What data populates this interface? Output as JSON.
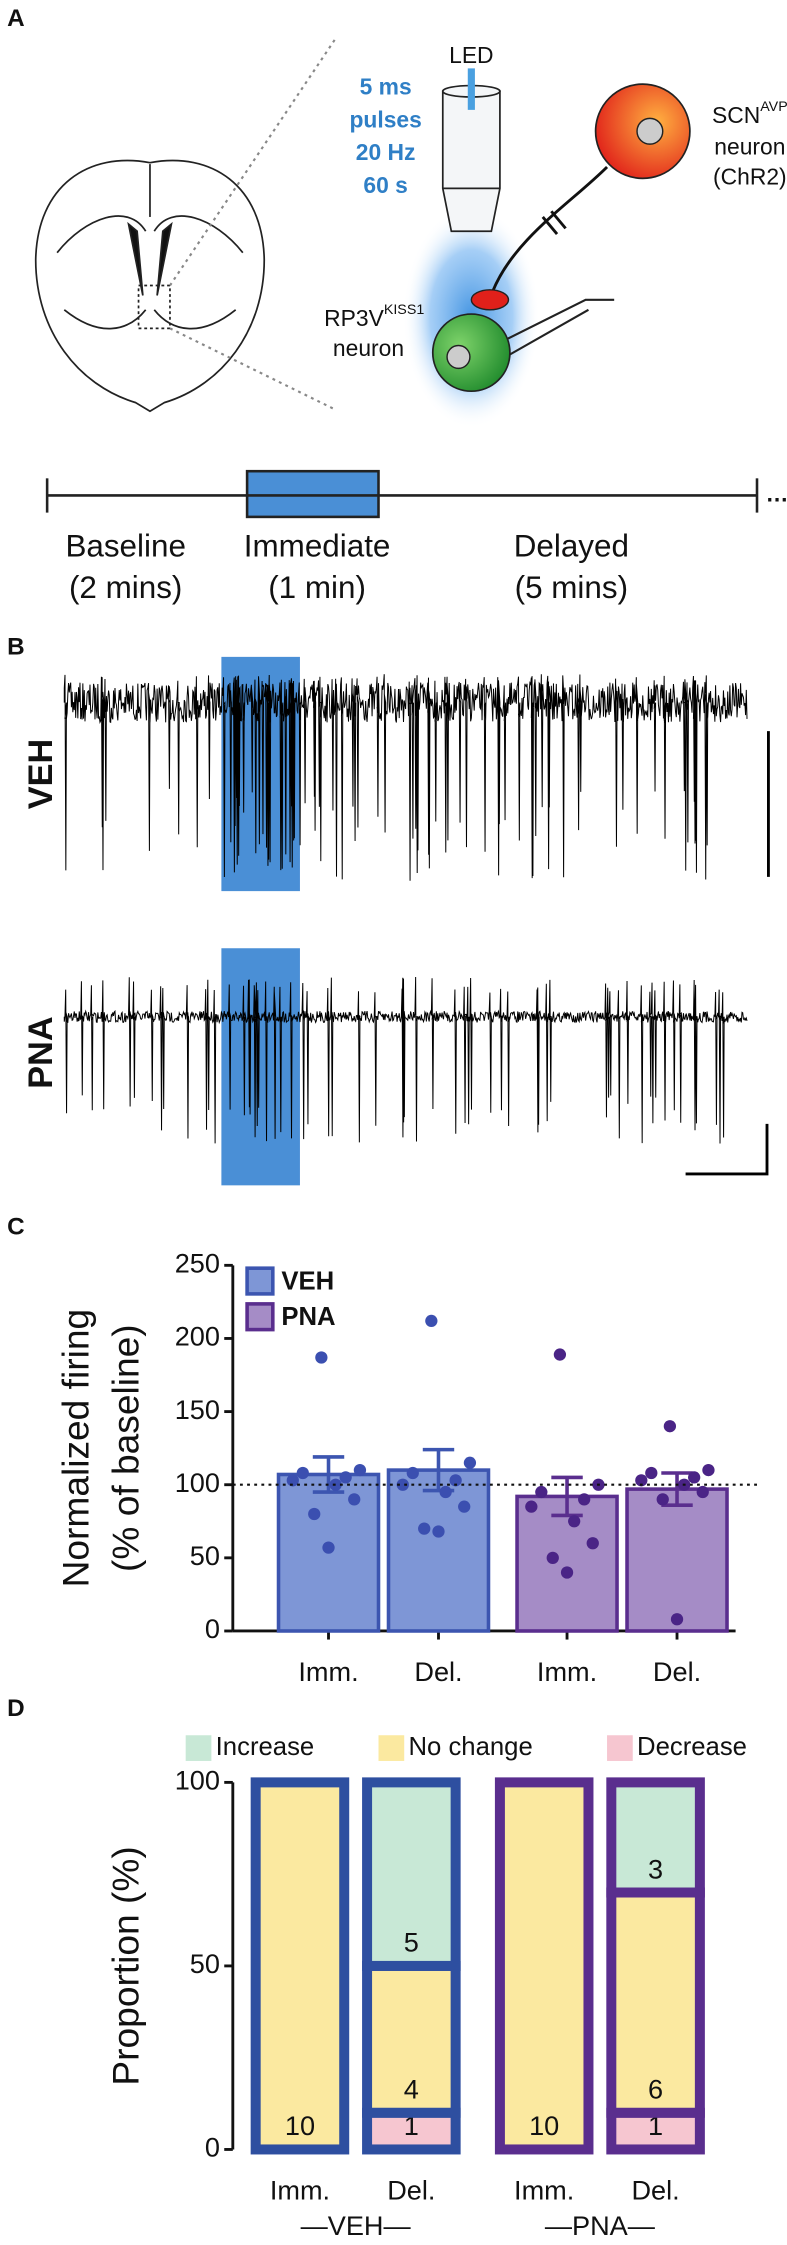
{
  "panel_a": {
    "label": "A",
    "led": "LED",
    "led_protocol": [
      "5 ms",
      "pulses",
      "20 Hz",
      "60 s"
    ],
    "scn_neuron": {
      "name": "SCN",
      "sup": "AVP",
      "line2": "neuron",
      "line3": "(ChR2)"
    },
    "rp3v_neuron": {
      "name": "RP3V",
      "sup": "KISS1",
      "line2": "neuron"
    },
    "timeline": [
      {
        "name": "Baseline",
        "duration": "(2 mins)"
      },
      {
        "name": "Immediate",
        "duration": "(1 min)"
      },
      {
        "name": "Delayed",
        "duration": "(5 mins)"
      }
    ]
  },
  "panel_b": {
    "label": "B",
    "traces": [
      "VEH",
      "PNA"
    ]
  },
  "chart_data": [
    {
      "type": "bar",
      "panel": "C",
      "ylabel": [
        "Normalized firing",
        "(% of baseline)"
      ],
      "categories": [
        "Imm.",
        "Del.",
        "Imm.",
        "Del."
      ],
      "series": [
        {
          "name": "VEH",
          "color": "#7e96d6",
          "edge": "#3c55b0",
          "dot": "#3b4fb0",
          "values": [
            107,
            110,
            null,
            null
          ],
          "errors": [
            12,
            14,
            null,
            null
          ],
          "points": [
            [
              187,
              110,
              108,
              105,
              103,
              100,
              90,
              80,
              57
            ],
            [
              212,
              115,
              108,
              103,
              100,
              95,
              85,
              70,
              68
            ],
            null,
            null
          ]
        },
        {
          "name": "PNA",
          "color": "#a58cc6",
          "edge": "#5a2e8e",
          "dot": "#4a2486",
          "values": [
            null,
            null,
            92,
            97
          ],
          "errors": [
            null,
            null,
            13,
            11
          ],
          "points": [
            null,
            null,
            [
              189,
              100,
              95,
              90,
              85,
              75,
              60,
              50,
              40
            ],
            [
              140,
              110,
              108,
              105,
              103,
              100,
              95,
              90,
              8
            ]
          ]
        }
      ],
      "reference_line": 100,
      "ylim": [
        0,
        250
      ],
      "yticks": [
        0,
        50,
        100,
        150,
        200,
        250
      ]
    },
    {
      "type": "stacked_bar",
      "panel": "D",
      "ylabel": "Proportion (%)",
      "categories": [
        "Imm.",
        "Del.",
        "Imm.",
        "Del."
      ],
      "group_labels": [
        "—VEH—",
        "—PNA—"
      ],
      "edge_colors": [
        "#2e4fa0",
        "#2e4fa0",
        "#5a2e8e",
        "#5a2e8e"
      ],
      "series": [
        {
          "name": "Increase",
          "color": "#c8e8d6",
          "values": [
            0,
            50,
            0,
            30
          ],
          "counts": [
            null,
            5,
            null,
            3
          ]
        },
        {
          "name": "No change",
          "color": "#fbe9a0",
          "values": [
            100,
            40,
            100,
            60
          ],
          "counts": [
            10,
            4,
            10,
            6
          ]
        },
        {
          "name": "Decrease",
          "color": "#f6c6d0",
          "values": [
            0,
            10,
            0,
            10
          ],
          "counts": [
            null,
            1,
            null,
            1
          ]
        }
      ],
      "ylim": [
        0,
        100
      ],
      "yticks": [
        0,
        50,
        100
      ]
    }
  ]
}
